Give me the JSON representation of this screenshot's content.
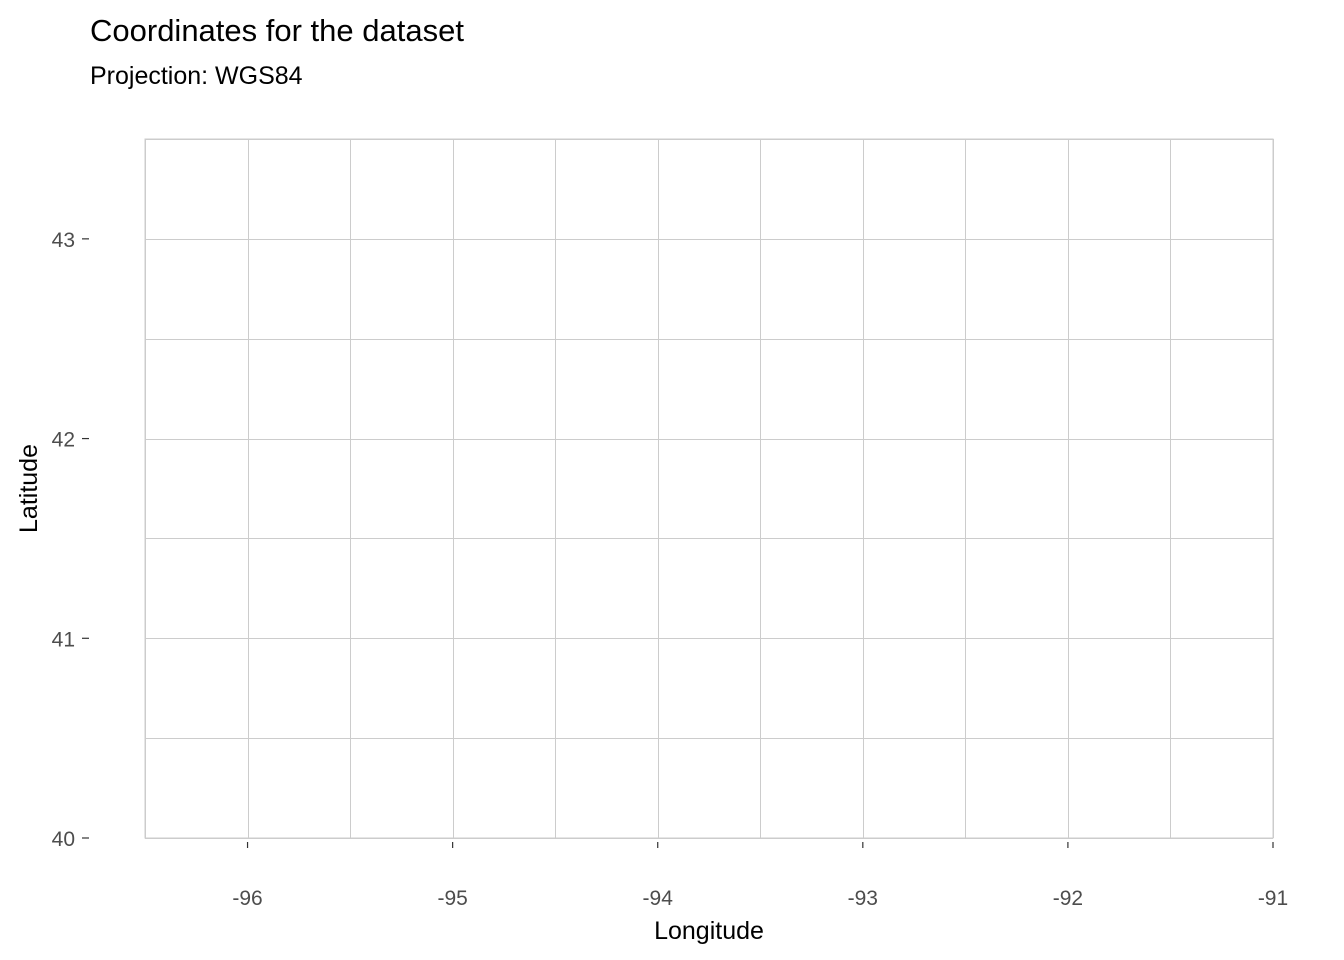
{
  "chart_data": {
    "type": "scatter",
    "title": "Coordinates for the dataset",
    "subtitle": "Projection: WGS84",
    "xlabel": "Longitude",
    "ylabel": "Latitude",
    "xlim": [
      -96.5,
      -91
    ],
    "ylim": [
      40,
      43.5
    ],
    "x_ticks": [
      -96,
      -95,
      -94,
      -93,
      -92,
      -91
    ],
    "x_tick_labels": [
      "-96",
      "-95",
      "-94",
      "-93",
      "-92",
      "-91"
    ],
    "y_ticks": [
      40,
      41,
      42,
      43
    ],
    "y_tick_labels": [
      "40",
      "41",
      "42",
      "43"
    ],
    "x_minor_grid": [
      -96.5,
      -95.5,
      -94.5,
      -93.5,
      -92.5,
      -91.5
    ],
    "y_minor_grid": [
      40.5,
      41.5,
      42.5,
      43.5
    ],
    "grid": true,
    "series": [],
    "colors": {
      "grid": "#cccccc",
      "tick_label": "#4d4d4d",
      "text": "#000000"
    }
  }
}
